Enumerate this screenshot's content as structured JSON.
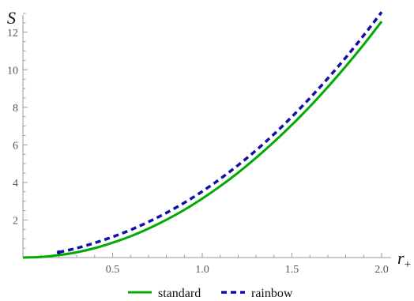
{
  "chart_data": {
    "type": "line",
    "xlabel": "r",
    "xlabel_subscript": "+",
    "ylabel": "S",
    "xlim": [
      0,
      2.0
    ],
    "ylim": [
      0,
      13
    ],
    "x_ticks_major": [
      0.5,
      1.0,
      1.5,
      2.0
    ],
    "x_tick_labels": [
      "0.5",
      "1.0",
      "1.5",
      "2.0"
    ],
    "y_ticks_major": [
      2,
      4,
      6,
      8,
      10,
      12
    ],
    "y_tick_labels": [
      "2",
      "4",
      "6",
      "8",
      "10",
      "12"
    ],
    "grid": false,
    "legend_position": "bottom-center",
    "series": [
      {
        "name": "standard",
        "color": "#00aa00",
        "style": "solid",
        "x": [
          0,
          0.1,
          0.2,
          0.3,
          0.4,
          0.5,
          0.6,
          0.7,
          0.8,
          0.9,
          1.0,
          1.1,
          1.2,
          1.3,
          1.4,
          1.5,
          1.6,
          1.7,
          1.8,
          1.9,
          2.0
        ],
        "y": [
          0,
          0.03,
          0.13,
          0.28,
          0.5,
          0.79,
          1.13,
          1.54,
          2.01,
          2.54,
          3.14,
          3.8,
          4.52,
          5.31,
          6.16,
          7.07,
          8.04,
          9.08,
          10.18,
          11.34,
          12.57
        ]
      },
      {
        "name": "rainbow",
        "color": "#1010aa",
        "style": "dashed",
        "x": [
          0.2,
          0.3,
          0.4,
          0.5,
          0.6,
          0.7,
          0.8,
          0.9,
          1.0,
          1.1,
          1.2,
          1.3,
          1.4,
          1.5,
          1.6,
          1.7,
          1.8,
          1.9,
          2.0
        ],
        "y": [
          0.28,
          0.5,
          0.78,
          1.1,
          1.47,
          1.9,
          2.38,
          2.92,
          3.52,
          4.19,
          4.92,
          5.71,
          6.57,
          7.5,
          8.49,
          9.54,
          10.65,
          11.83,
          13.07
        ]
      }
    ]
  }
}
